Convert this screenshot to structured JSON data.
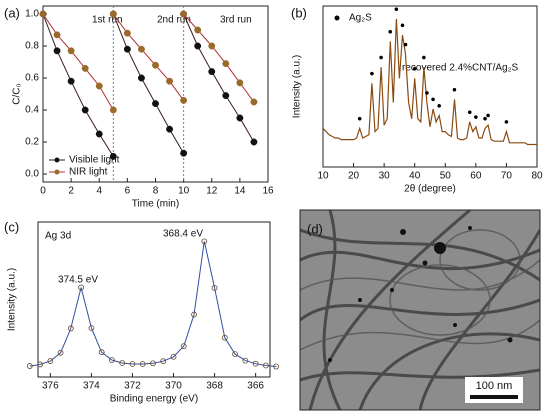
{
  "chart_data": [
    {
      "type": "line",
      "label": "(a)",
      "xlabel": "Time (min)",
      "ylabel": "C/C₀",
      "xlim": [
        0,
        16
      ],
      "xticks": [
        0,
        2,
        4,
        6,
        8,
        10,
        12,
        14,
        16
      ],
      "ylim": [
        -0.05,
        1.05
      ],
      "yticks": [
        {
          "value": 0,
          "label": "0.0"
        },
        0.2,
        0.4,
        0.6,
        0.8,
        {
          "value": 1,
          "label": "1.0"
        }
      ],
      "vlines": [
        5,
        10
      ],
      "legend": "lower left",
      "annotations": [
        "1st run",
        "2nd run",
        "3rd run"
      ],
      "x": [
        0,
        1,
        2,
        3,
        4,
        5,
        5,
        5,
        6,
        7,
        8,
        9,
        10,
        10,
        10,
        11,
        12,
        13,
        14,
        15
      ],
      "series": [
        {
          "name": "Visible light",
          "color": "#111111",
          "line_color": "#3a1a1a",
          "marker": "circle",
          "values": [
            1.0,
            0.77,
            0.58,
            0.4,
            0.25,
            0.11,
            null,
            1.0,
            0.78,
            0.6,
            0.44,
            0.28,
            0.13,
            null,
            1.0,
            0.8,
            0.64,
            0.49,
            0.35,
            0.2
          ]
        },
        {
          "name": "NIR light",
          "color": "#9a6a2a",
          "line_color": "#b03030",
          "marker": "circle",
          "values": [
            1.0,
            0.87,
            0.77,
            0.66,
            0.55,
            0.4,
            null,
            1.0,
            0.88,
            0.78,
            0.68,
            0.58,
            0.46,
            null,
            1.0,
            0.9,
            0.8,
            0.69,
            0.57,
            0.45
          ]
        }
      ]
    },
    {
      "type": "line",
      "label": "(b)",
      "xlabel": "2θ (degree)",
      "ylabel": "Intensity (a.u.)",
      "xlim": [
        10,
        80
      ],
      "xticks": [
        10,
        20,
        30,
        40,
        50,
        60,
        70,
        80
      ],
      "ylim": [
        0,
        100
      ],
      "legend": "upper left",
      "annotations": [
        "recovered 2.4%CNT/Ag₂S"
      ],
      "x": [
        10,
        11,
        12,
        13,
        14,
        15,
        16,
        17,
        18,
        19,
        20,
        21,
        22,
        23,
        24,
        25,
        26,
        27,
        28,
        29,
        30,
        31,
        32,
        33,
        34,
        35,
        36,
        37,
        38,
        39,
        40,
        41,
        42,
        43,
        44,
        45,
        46,
        47,
        48,
        49,
        50,
        51,
        52,
        53,
        54,
        55,
        56,
        57,
        58,
        59,
        60,
        61,
        62,
        63,
        64,
        65,
        66,
        67,
        68,
        69,
        70,
        71,
        72,
        73,
        74,
        75,
        76,
        77,
        78,
        79,
        80
      ],
      "series": [
        {
          "color": "#8a4a10",
          "values": [
            24,
            22,
            20,
            19,
            18,
            18,
            17,
            17,
            17,
            17,
            17,
            18,
            24,
            18,
            19,
            20,
            52,
            22,
            24,
            62,
            26,
            30,
            78,
            40,
            92,
            55,
            82,
            70,
            40,
            30,
            55,
            30,
            28,
            62,
            40,
            25,
            36,
            28,
            32,
            22,
            22,
            20,
            19,
            42,
            18,
            17,
            17,
            18,
            28,
            22,
            25,
            18,
            18,
            24,
            26,
            17,
            16,
            16,
            16,
            16,
            22,
            15,
            15,
            15,
            15,
            15,
            15,
            14,
            14,
            14,
            14
          ]
        },
        {
          "name": "Ag₂S",
          "color": "#000000",
          "marker": "circle",
          "line": false,
          "x": [
            22,
            26,
            29,
            32,
            34,
            36,
            37,
            40,
            43,
            44,
            46,
            48,
            53,
            58,
            60,
            63,
            64,
            70
          ],
          "values": [
            30,
            58,
            68,
            84,
            98,
            88,
            76,
            61,
            68,
            46,
            42,
            38,
            48,
            34,
            31,
            30,
            32,
            28
          ]
        }
      ]
    },
    {
      "type": "line",
      "label": "(c)",
      "xlabel": "Binding energy (eV)",
      "ylabel": "Intensity (a.u.)",
      "xlim": [
        376.6,
        365.3
      ],
      "xticks": [
        376,
        374,
        372,
        370,
        368,
        366
      ],
      "ylim": [
        0,
        105
      ],
      "annotations": [
        "Ag 3d",
        "374.5 eV",
        "368.4 eV"
      ],
      "x": [
        377,
        376.5,
        376,
        375.5,
        375,
        374.5,
        374,
        373.5,
        373,
        372.5,
        372,
        371.5,
        371,
        370.5,
        370,
        369.5,
        369,
        368.5,
        368,
        367.5,
        367,
        366.5,
        366,
        365.5,
        365
      ],
      "series": [
        {
          "color": "#6b4a2a",
          "line_color": "#3050a0",
          "marker": "open-circle",
          "values": [
            7.4,
            8.5,
            10.8,
            16.4,
            32.9,
            60.6,
            33.2,
            16.8,
            11.5,
            9.5,
            8.8,
            8.8,
            9.3,
            10.7,
            13.7,
            20.9,
            42.3,
            91.9,
            60.3,
            26.6,
            15.5,
            11.1,
            9.0,
            7.8,
            7.1
          ]
        }
      ]
    }
  ],
  "image": {
    "label": "(d)",
    "scale_bar": "100 nm"
  }
}
